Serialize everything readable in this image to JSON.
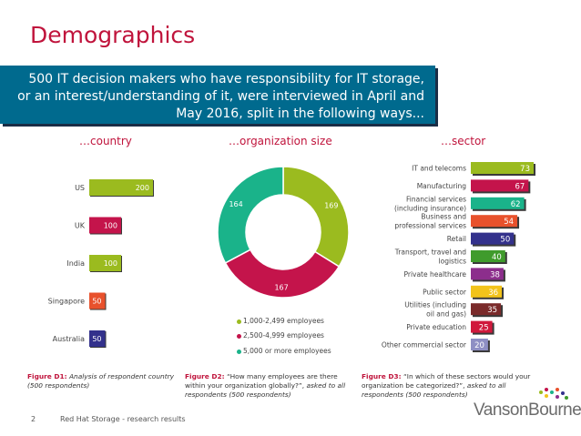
{
  "title": "Demographics",
  "banner_text": "500 IT decision makers who have responsibility for IT storage, or an interest/understanding of it, were interviewed in April and May 2016, split in the following ways...",
  "sections": {
    "country": "…country",
    "org_size": "…organization size",
    "sector": "…sector"
  },
  "colors": {
    "accent": "#c0143c",
    "banner": "#006a8e"
  },
  "chart_data": [
    {
      "type": "bar",
      "orientation": "horizontal",
      "categories": [
        "US",
        "UK",
        "India",
        "Singapore",
        "Australia"
      ],
      "values": [
        200,
        100,
        100,
        50,
        50
      ],
      "colors": [
        "#9bbb1f",
        "#c4144b",
        "#9bbb1f",
        "#e8512c",
        "#33318c"
      ]
    },
    {
      "type": "pie",
      "labels": [
        "1,000-2,499 employees",
        "2,500-4,999 employees",
        "5,000 or more employees"
      ],
      "values": [
        169,
        167,
        164
      ],
      "colors": [
        "#9bbb1f",
        "#c4144b",
        "#1ab38a"
      ]
    },
    {
      "type": "bar",
      "orientation": "horizontal",
      "categories": [
        "IT and telecoms",
        "Manufacturing",
        "Financial services (including insurance)",
        "Business and professional services",
        "Retail",
        "Transport, travel and logistics",
        "Private healthcare",
        "Public sector",
        "Utilities (including oil and gas)",
        "Private education",
        "Other commercial sector"
      ],
      "values": [
        73,
        67,
        62,
        54,
        50,
        40,
        38,
        36,
        35,
        25,
        20
      ],
      "colors": [
        "#9bbb1f",
        "#c4144b",
        "#1ab38a",
        "#e8512c",
        "#33318c",
        "#3f9b2c",
        "#8c2e8c",
        "#f2c31a",
        "#7a2a2a",
        "#d0183c",
        "#8e8fc4"
      ]
    }
  ],
  "figures": {
    "d1_label": "Figure D1:",
    "d1_text": "Analysis of respondent country (500 respondents)",
    "d2_label": "Figure D2:",
    "d2_quote": "“How many employees are there within your organization globally?”,",
    "d2_italic": "asked to all respondents (500 respondents)",
    "d3_label": "Figure D3:",
    "d3_quote": "“In which of these sectors would your organization be categorized?”,",
    "d3_italic": "asked to all respondents (500 respondents)"
  },
  "footer": {
    "page_number": "2",
    "text": "Red Hat Storage - research results",
    "logo": "VansonBourne"
  }
}
